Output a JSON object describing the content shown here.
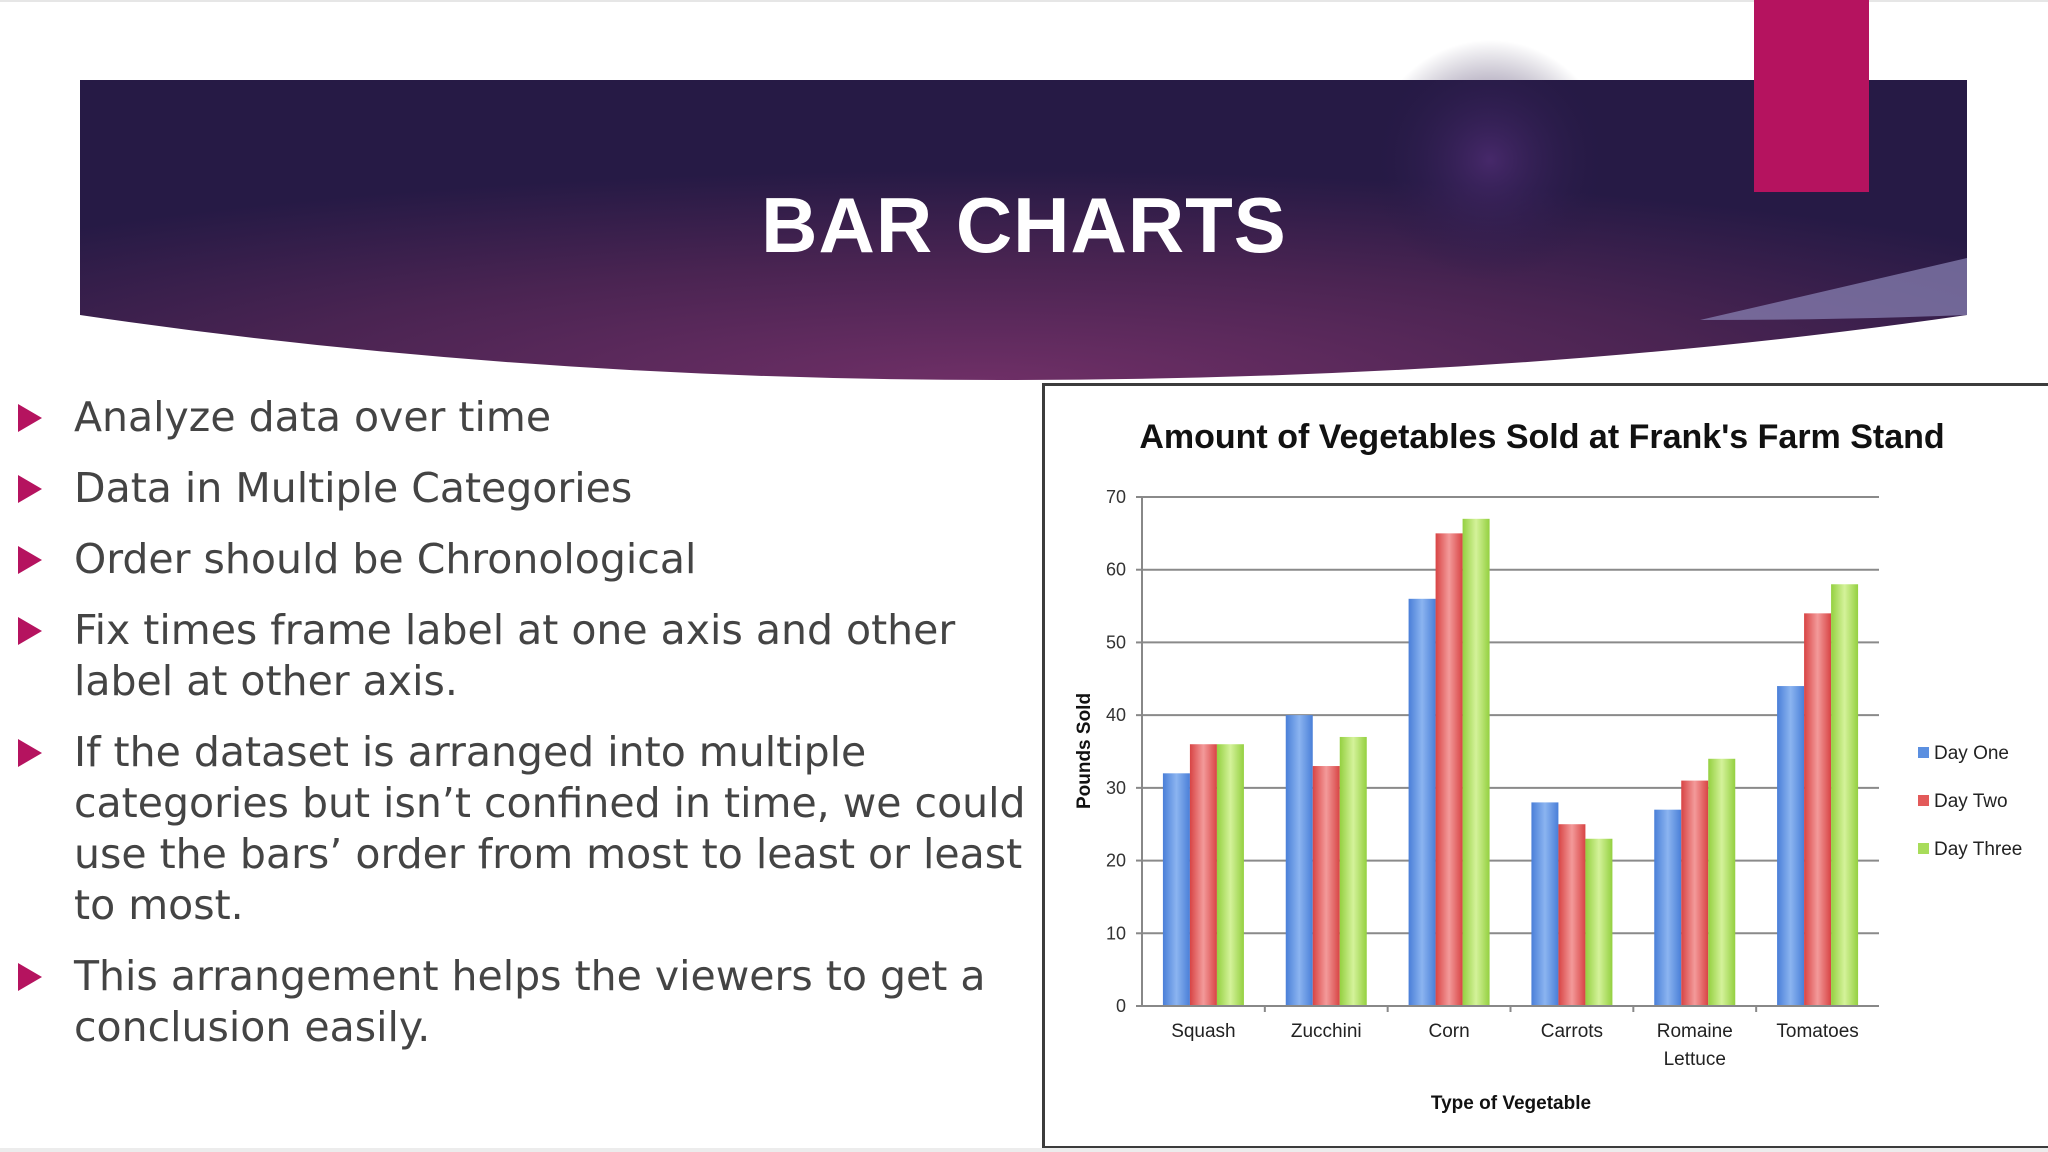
{
  "slide": {
    "title": "BAR CHARTS",
    "colors": {
      "banner_dark": "#261a45",
      "banner_mid": "#6a2c63",
      "accent": "#b5135f",
      "text": "#444444"
    },
    "bullets": [
      {
        "text": "Analyze data over time"
      },
      {
        "text": "Data in Multiple Categories"
      },
      {
        "text": "Order should be Chronological"
      },
      {
        "text": "Fix times frame label at one axis and other label at other axis."
      },
      {
        "text": "If the dataset is arranged into multiple categories but isn’t confined in time, we could use the bars’ order from most to least or least to most."
      },
      {
        "text": "This arrangement helps the viewers to get a conclusion easily."
      }
    ],
    "bullet_icon": "triangle-bullet-icon"
  },
  "chart_data": {
    "type": "bar",
    "title": "Amount of Vegetables Sold at Frank's Farm Stand",
    "xlabel": "Type of Vegetable",
    "ylabel": "Pounds Sold",
    "categories": [
      "Squash",
      "Zucchini",
      "Corn",
      "Carrots",
      "Romaine Lettuce",
      "Tomatoes"
    ],
    "series": [
      {
        "name": "Day One",
        "values": [
          32,
          40,
          56,
          28,
          27,
          44
        ],
        "color": "#5b8fe0"
      },
      {
        "name": "Day Two",
        "values": [
          36,
          33,
          65,
          25,
          31,
          54
        ],
        "color": "#e35a5a"
      },
      {
        "name": "Day Three",
        "values": [
          36,
          37,
          67,
          23,
          34,
          58
        ],
        "color": "#a8dc5a"
      }
    ],
    "yticks": [
      0,
      10,
      20,
      30,
      40,
      50,
      60,
      70
    ],
    "ylim": [
      0,
      70
    ],
    "grid": true,
    "legend": "right"
  }
}
